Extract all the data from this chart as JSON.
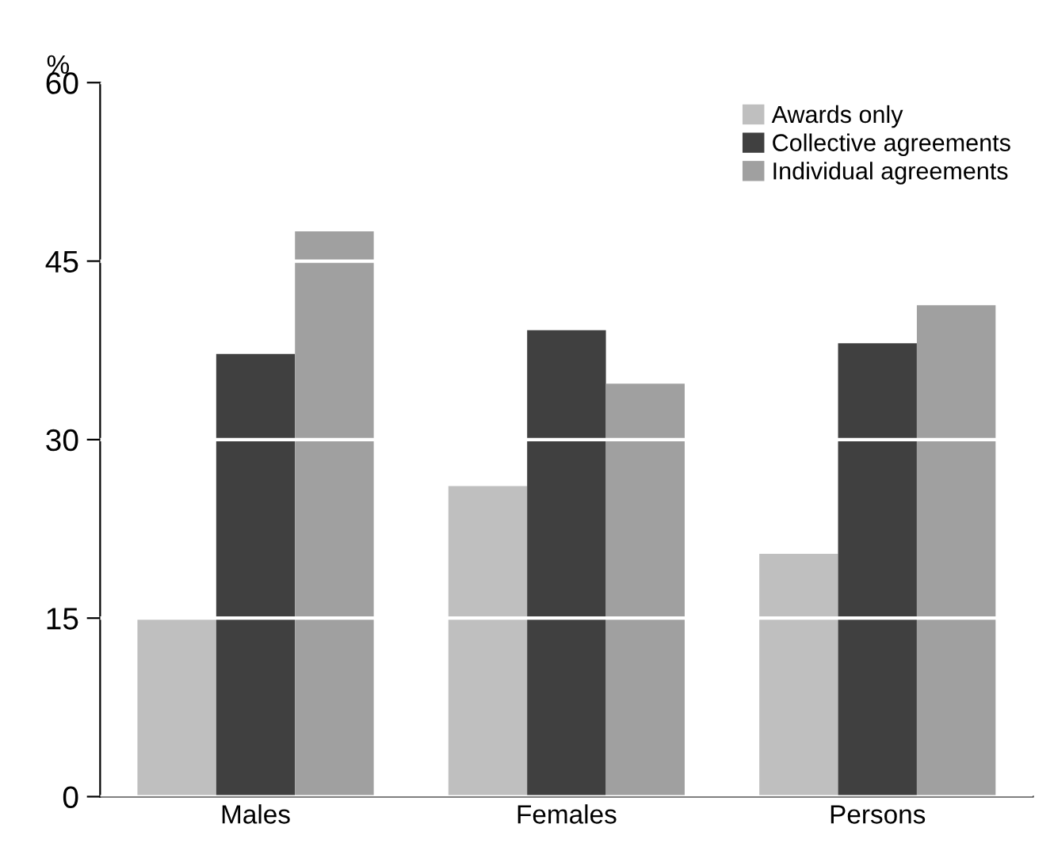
{
  "chart_data": {
    "type": "bar",
    "ylabel": "%",
    "categories": [
      "Males",
      "Females",
      "Persons"
    ],
    "series": [
      {
        "name": "Awards only",
        "color": "#bfbfbf",
        "values": [
          15.1,
          26.1,
          20.4
        ]
      },
      {
        "name": "Collective agreements",
        "color": "#404040",
        "values": [
          37.2,
          39.2,
          38.1
        ]
      },
      {
        "name": "Individual agreements",
        "color": "#a0a0a0",
        "values": [
          47.5,
          34.7,
          41.3
        ]
      }
    ],
    "ylim": [
      0,
      60
    ],
    "yticks": [
      0,
      15,
      30,
      45,
      60
    ],
    "grid": "y",
    "legend": "top right"
  }
}
